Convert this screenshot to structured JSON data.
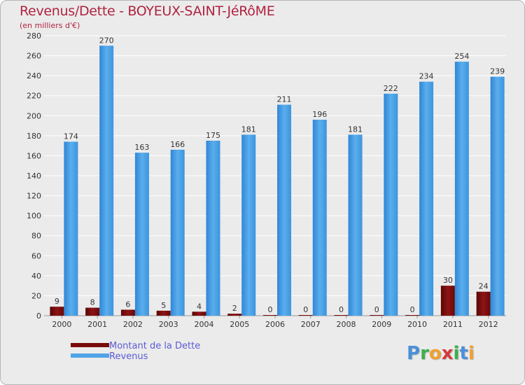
{
  "colors": {
    "title": "#b0233f",
    "revenus": "#4fa3e6",
    "dette": "#7a0b0b",
    "legend_text": "#5b5bd6"
  },
  "logo": {
    "letters": [
      {
        "ch": "P",
        "color": "#4a90d9"
      },
      {
        "ch": "r",
        "color": "#3cb04a"
      },
      {
        "ch": "o",
        "color": "#f0a030"
      },
      {
        "ch": "x",
        "color": "#d63a3a"
      },
      {
        "ch": "i",
        "color": "#3cb04a"
      },
      {
        "ch": "t",
        "color": "#4a90d9"
      },
      {
        "ch": "i",
        "color": "#f0a030"
      }
    ]
  },
  "chart_data": {
    "type": "bar",
    "title": "Revenus/Dette - BOYEUX-SAINT-JéRôME",
    "subtitle": "(en milliers d'€)",
    "categories": [
      "2000",
      "2001",
      "2002",
      "2003",
      "2004",
      "2005",
      "2006",
      "2007",
      "2008",
      "2009",
      "2010",
      "2011",
      "2012"
    ],
    "series": [
      {
        "name": "Montant de la Dette",
        "values": [
          9,
          8,
          6,
          5,
          4,
          2,
          0,
          0,
          0,
          0,
          0,
          30,
          24
        ]
      },
      {
        "name": "Revenus",
        "values": [
          174,
          270,
          163,
          166,
          175,
          181,
          211,
          196,
          181,
          222,
          234,
          254,
          239
        ]
      }
    ],
    "ylim": [
      0,
      280
    ],
    "yticks": [
      0,
      20,
      40,
      60,
      80,
      100,
      120,
      140,
      160,
      180,
      200,
      220,
      240,
      260,
      280
    ],
    "grid": true,
    "legend": "bottom-left"
  }
}
